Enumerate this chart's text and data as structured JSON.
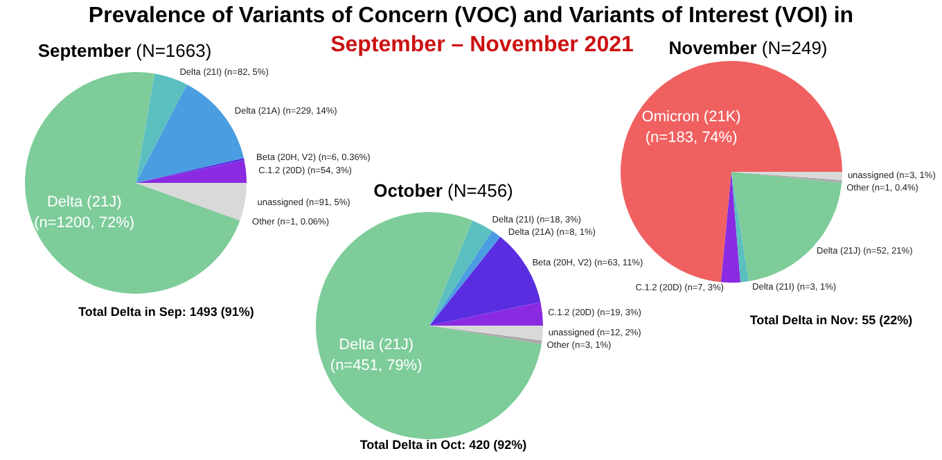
{
  "chart_data": [
    {
      "type": "pie",
      "title": "September (N=1663)",
      "annotations": [
        "Prevalence of Variants of Concern (VOC) and Variants of Interest (VOI) in",
        "September – November 2021",
        "Total Delta in Sep: 1493 (91%)"
      ],
      "categories": [
        "C.1.2 (20D)",
        "Beta (20H, V2)",
        "Delta (21A)",
        "Delta (21I)",
        "Delta (21J)",
        "Other",
        "unassigned"
      ],
      "values": [
        54,
        6,
        229,
        82,
        1200,
        1,
        91
      ],
      "value_labels": [
        "(n=54, 3%)",
        "(n=6, 0.36%)",
        "(n=229, 14%)",
        "(n=82, 5%)",
        "(n=1200, 72%)",
        "(n=1, 0.06%)",
        "(n=91, 5%)"
      ],
      "colors": [
        "#8a2be2",
        "#5a2ee0",
        "#4a9de0",
        "#5bbfbf",
        "#7dcc9a",
        "#a9a9a9",
        "#d9d9d9"
      ]
    },
    {
      "type": "pie",
      "title": "October (N=456)",
      "annotations": [
        "Total Delta in Oct: 420 (92%)"
      ],
      "categories": [
        "C.1.2 (20D)",
        "Beta (20H, V2)",
        "Delta (21A)",
        "Delta (21I)",
        "Delta (21J)",
        "Other",
        "unassigned"
      ],
      "values": [
        19,
        63,
        8,
        18,
        451,
        3,
        12
      ],
      "value_labels": [
        "(n=19, 3%)",
        "(n=63, 11%)",
        "(n=8, 1%)",
        "(n=18, 3%)",
        "(n=451, 79%)",
        "(n=3, 1%)",
        "(n=12, 2%)"
      ],
      "colors": [
        "#8a2be2",
        "#5a2ee0",
        "#4a9de0",
        "#5bbfbf",
        "#7dcc9a",
        "#a9a9a9",
        "#d9d9d9"
      ]
    },
    {
      "type": "pie",
      "title": "November (N=249)",
      "annotations": [
        "Total Delta in Nov: 55 (22%)"
      ],
      "categories": [
        "Omicron (21K)",
        "C.1.2 (20D)",
        "Delta (21I)",
        "Delta (21J)",
        "Other",
        "unassigned"
      ],
      "values": [
        183,
        7,
        3,
        52,
        1,
        3
      ],
      "value_labels": [
        "(n=183, 74%)",
        "(n=7, 3%)",
        "(n=3, 1%)",
        "(n=52, 21%)",
        "(n=1, 0.4%)",
        "(n=3, 1%)"
      ],
      "colors": [
        "#f06060",
        "#8a2be2",
        "#5bbfbf",
        "#7dcc9a",
        "#a9a9a9",
        "#d9d9d9"
      ]
    }
  ]
}
